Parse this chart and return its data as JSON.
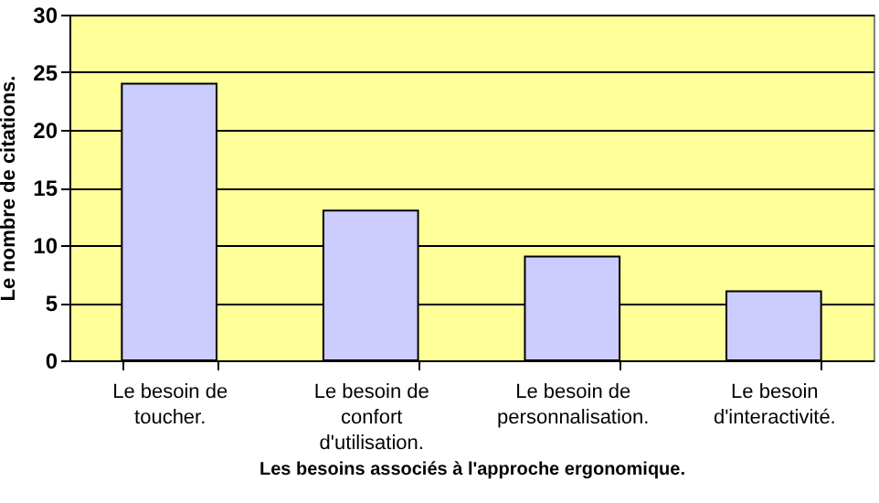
{
  "chart_data": {
    "type": "bar",
    "xlabel": "Les besoins associés à l'approche ergonomique.",
    "ylabel": "Le nombre de citations.",
    "categories": [
      "Le besoin de toucher.",
      "Le besoin de confort d'utilisation.",
      "Le besoin de personnalisation.",
      "Le besoin d'interactivité."
    ],
    "values": [
      24,
      13,
      9,
      6
    ],
    "color": "#ccccff",
    "ylim": [
      0,
      30
    ],
    "yticks": [
      0,
      5,
      10,
      15,
      20,
      25,
      30
    ],
    "grid": "y"
  }
}
